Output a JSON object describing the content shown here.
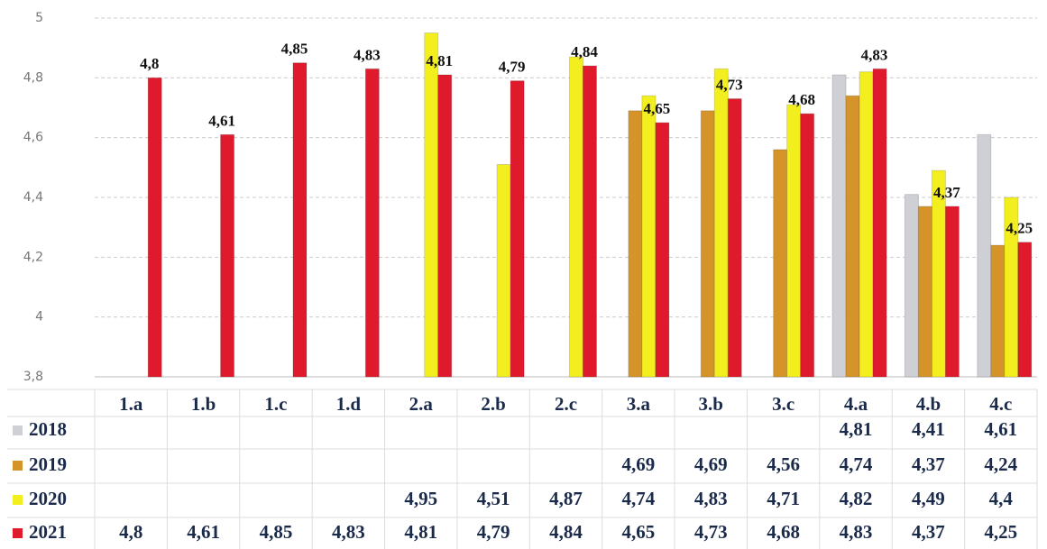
{
  "chart_data": {
    "type": "bar",
    "categories": [
      "1.a",
      "1.b",
      "1.c",
      "1.d",
      "2.a",
      "2.b",
      "2.c",
      "3.a",
      "3.b",
      "3.c",
      "4.a",
      "4.b",
      "4.c"
    ],
    "series": [
      {
        "name": "2018",
        "color": "#cfcfd6",
        "values": [
          null,
          null,
          null,
          null,
          null,
          null,
          null,
          null,
          null,
          null,
          4.81,
          4.41,
          4.61
        ],
        "value_labels": [
          null,
          null,
          null,
          null,
          null,
          null,
          null,
          null,
          null,
          null,
          "4,81",
          "4,41",
          "4,61"
        ]
      },
      {
        "name": "2019",
        "color": "#d4942a",
        "values": [
          null,
          null,
          null,
          null,
          null,
          null,
          null,
          4.69,
          4.69,
          4.56,
          4.74,
          4.37,
          4.24
        ],
        "value_labels": [
          null,
          null,
          null,
          null,
          null,
          null,
          null,
          "4,69",
          "4,69",
          "4,56",
          "4,74",
          "4,37",
          "4,24"
        ]
      },
      {
        "name": "2020",
        "color": "#f3ef1e",
        "values": [
          null,
          null,
          null,
          null,
          4.95,
          4.51,
          4.87,
          4.74,
          4.83,
          4.71,
          4.82,
          4.49,
          4.4
        ],
        "value_labels": [
          null,
          null,
          null,
          null,
          "4,95",
          "4,51",
          "4,87",
          "4,74",
          "4,83",
          "4,71",
          "4,82",
          "4,49",
          "4,4"
        ]
      },
      {
        "name": "2021",
        "color": "#df1a2c",
        "values": [
          4.8,
          4.61,
          4.85,
          4.83,
          4.81,
          4.79,
          4.84,
          4.65,
          4.73,
          4.68,
          4.83,
          4.37,
          4.25
        ],
        "value_labels": [
          "4,8",
          "4,61",
          "4,85",
          "4,83",
          "4,81",
          "4,79",
          "4,84",
          "4,65",
          "4,73",
          "4,68",
          "4,83",
          "4,37",
          "4,25"
        ]
      }
    ],
    "ylim": [
      3.8,
      5
    ],
    "yticks": [
      {
        "value": 3.8,
        "label": "3,8"
      },
      4,
      {
        "value": 4.2,
        "label": "4,2"
      },
      {
        "value": 4.4,
        "label": "4,4"
      },
      {
        "value": 4.6,
        "label": "4,6"
      },
      {
        "value": 4.8,
        "label": "4,8"
      },
      5
    ],
    "grid": true,
    "data_labels_series": 3
  }
}
